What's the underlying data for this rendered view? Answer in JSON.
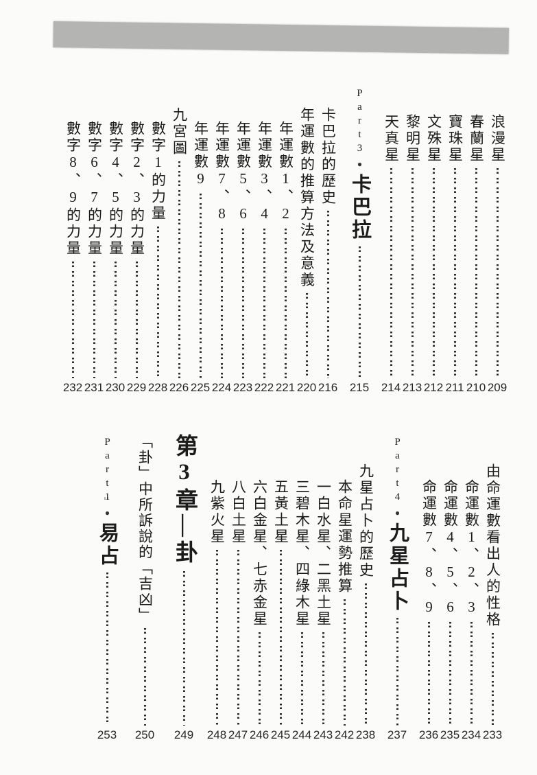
{
  "page": {
    "kind": "scanned-book-table-of-contents",
    "colors": {
      "paper": "#fbfbf9",
      "ink": "#1b1b1b",
      "scan_band": "#b4b4b2"
    }
  },
  "toc": {
    "sections": [
      {
        "name": "upper",
        "entries": [
          {
            "title": "浪漫星",
            "page": "209",
            "level": "star"
          },
          {
            "title": "春蘭星",
            "page": "210",
            "level": "star"
          },
          {
            "title": "寶珠星",
            "page": "211",
            "level": "star"
          },
          {
            "title": "文殊星",
            "page": "212",
            "level": "star"
          },
          {
            "title": "黎明星",
            "page": "213",
            "level": "star"
          },
          {
            "title": "天真星",
            "page": "214",
            "level": "star"
          },
          {
            "type": "part",
            "latin": "Part3",
            "bullet": "●",
            "title": "卡巴拉",
            "page": "215"
          },
          {
            "title": "卡巴拉的歷史",
            "page": "216",
            "level": "section"
          },
          {
            "title": "年運數的推算方法及意義",
            "page": "220",
            "level": "section"
          },
          {
            "title": "年運數1、2",
            "page": "221",
            "level": "item"
          },
          {
            "title": "年運數3、4",
            "page": "222",
            "level": "item"
          },
          {
            "title": "年運數5、6",
            "page": "223",
            "level": "item"
          },
          {
            "title": "年運數7、8",
            "page": "224",
            "level": "item"
          },
          {
            "title": "年運數9",
            "page": "225",
            "level": "item"
          },
          {
            "title": "九宮圖",
            "page": "226",
            "level": "section"
          },
          {
            "title": "數字1的力量",
            "page": "228",
            "level": "item"
          },
          {
            "title": "數字2、3的力量",
            "page": "229",
            "level": "item"
          },
          {
            "title": "數字4、5的力量",
            "page": "230",
            "level": "item"
          },
          {
            "title": "數字6、7的力量",
            "page": "231",
            "level": "item"
          },
          {
            "title": "數字8、9的力量",
            "page": "232",
            "level": "item"
          }
        ]
      },
      {
        "name": "lower",
        "entries": [
          {
            "title": "由命運數看出人的性格",
            "page": "233",
            "level": "section"
          },
          {
            "title": "命運數1、2、3",
            "page": "234",
            "level": "item"
          },
          {
            "title": "命運數4、5、6",
            "page": "235",
            "level": "item"
          },
          {
            "title": "命運數7、8、9",
            "page": "236",
            "level": "item"
          },
          {
            "type": "part",
            "latin": "Part4",
            "bullet": "●",
            "title": "九星占卜",
            "page": "237"
          },
          {
            "title": "九星占卜的歷史",
            "page": "238",
            "level": "section"
          },
          {
            "title": "本命星運勢推算",
            "page": "242",
            "level": "item"
          },
          {
            "title": "一白水星、二黑土星",
            "page": "243",
            "level": "item"
          },
          {
            "title": "三碧木星、四綠木星",
            "page": "244",
            "level": "item"
          },
          {
            "title": "五黃土星",
            "page": "245",
            "level": "item"
          },
          {
            "title": "六白金星、七赤金星",
            "page": "246",
            "level": "item"
          },
          {
            "title": "八白土星",
            "page": "247",
            "level": "item"
          },
          {
            "title": "九紫火星",
            "page": "248",
            "level": "item"
          },
          {
            "type": "chapter",
            "title": "第3章—卦",
            "page": "249"
          },
          {
            "title": "「卦」中所訴說的「吉凶」",
            "page": "250",
            "level": "quote"
          },
          {
            "type": "part",
            "latin": "Part1",
            "bullet": "●",
            "title": "易占",
            "page": "253"
          }
        ]
      }
    ]
  }
}
